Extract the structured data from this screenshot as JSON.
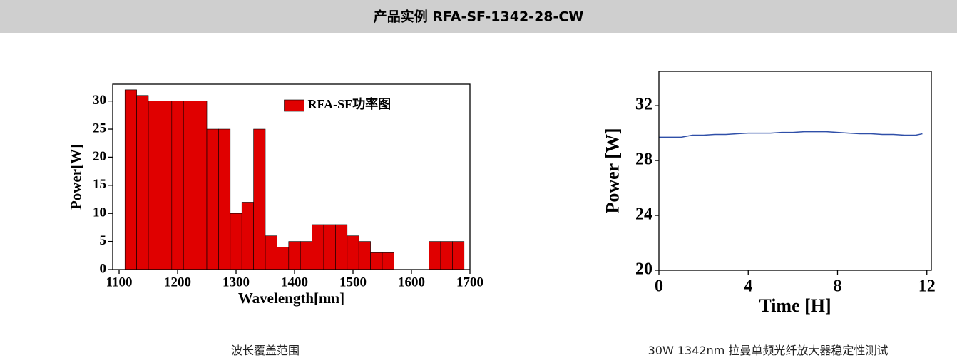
{
  "header": {
    "title": "产品实例 RFA-SF-1342-28-CW"
  },
  "chart_data": [
    {
      "type": "histogram",
      "xlabel": "Wavelength[nm]",
      "ylabel": "Power[W]",
      "bins": [
        1110,
        1130,
        1150,
        1170,
        1190,
        1210,
        1230,
        1250,
        1270,
        1290,
        1310,
        1330,
        1350,
        1370,
        1390,
        1410,
        1430,
        1450,
        1470,
        1490,
        1510,
        1530,
        1550,
        1570,
        1590,
        1610,
        1630,
        1650,
        1670,
        1690
      ],
      "series": [
        {
          "name": "RFA-SF功率图",
          "color": "#e00000",
          "values": [
            32,
            31,
            30,
            30,
            30,
            30,
            30,
            25,
            25,
            10,
            12,
            25,
            6,
            4,
            5,
            5,
            8,
            8,
            8,
            6,
            5,
            3,
            3,
            0,
            0,
            0,
            5,
            5,
            5
          ]
        }
      ],
      "xlim": [
        1089,
        1700
      ],
      "ylim": [
        0,
        33
      ],
      "xticks": [
        1100,
        1200,
        1300,
        1400,
        1500,
        1600,
        1700
      ],
      "yticks": [
        0,
        5,
        10,
        15,
        20,
        25,
        30
      ],
      "legend": "upper right",
      "caption": "波长覆盖范围"
    },
    {
      "type": "line",
      "xlabel": "Time [H]",
      "ylabel": "Power [W]",
      "x": [
        0,
        0.5,
        1,
        1.5,
        2,
        2.5,
        3,
        3.5,
        4,
        4.5,
        5,
        5.5,
        6,
        6.5,
        7,
        7.5,
        8,
        8.5,
        9,
        9.5,
        10,
        10.5,
        11,
        11.5,
        11.8
      ],
      "values": [
        29.7,
        29.7,
        29.7,
        29.85,
        29.85,
        29.9,
        29.9,
        29.95,
        30,
        30,
        30,
        30.05,
        30.05,
        30.1,
        30.1,
        30.1,
        30.05,
        30,
        29.95,
        29.95,
        29.9,
        29.9,
        29.85,
        29.85,
        29.95
      ],
      "color": "#2f4fa8",
      "xlim": [
        0,
        12.2
      ],
      "ylim": [
        20,
        34.5
      ],
      "xticks": [
        0,
        4,
        8,
        12
      ],
      "yticks": [
        20,
        24,
        28,
        32
      ],
      "caption": "30W 1342nm 拉曼单频光纤放大器稳定性测试"
    }
  ]
}
